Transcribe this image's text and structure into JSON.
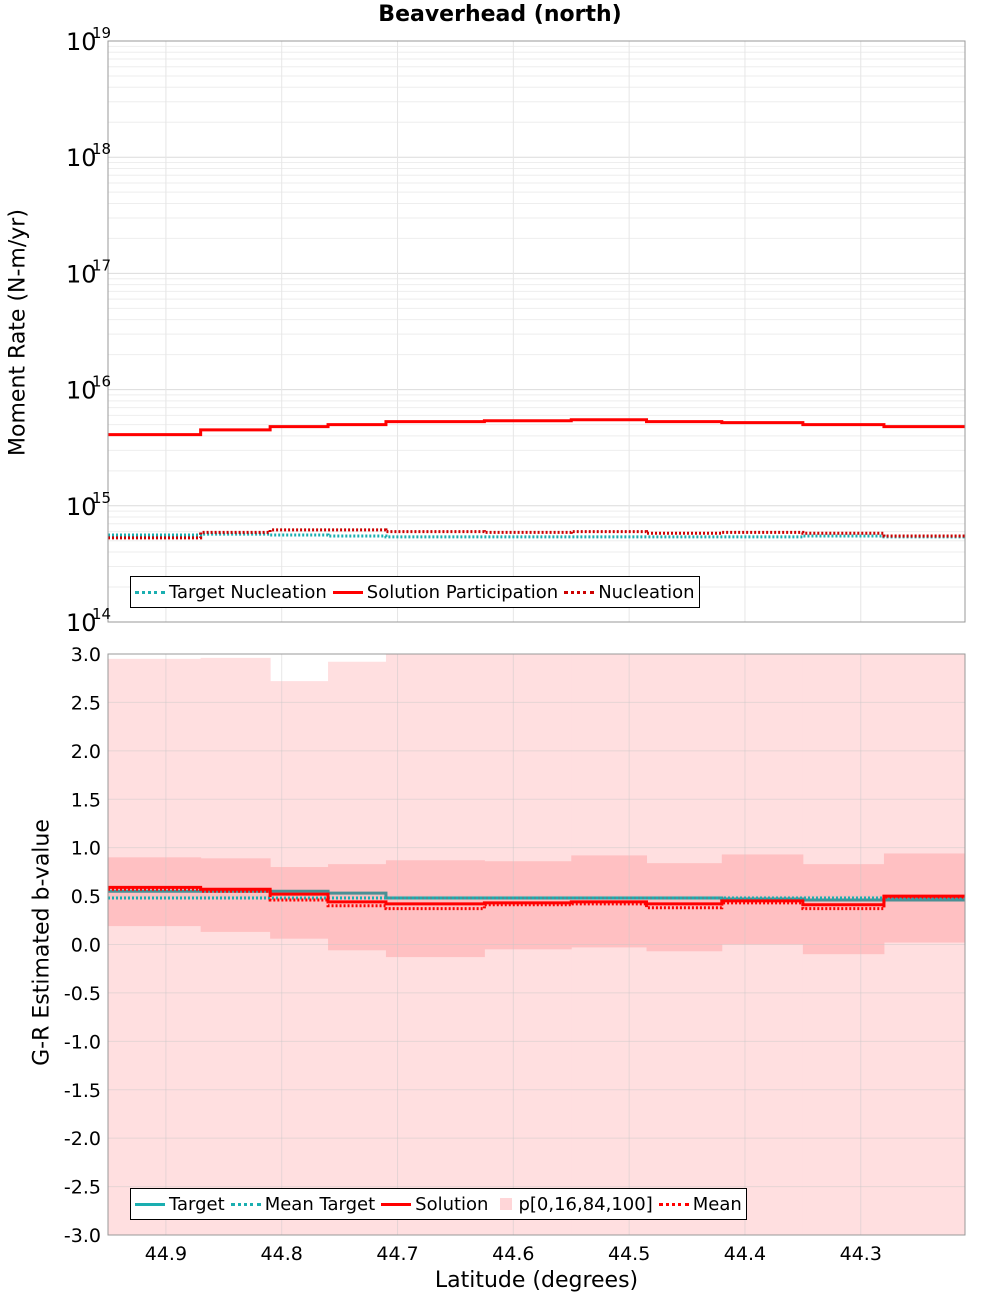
{
  "chart_title": "Beaverhead (north)",
  "colors": {
    "target": "#1aaeb0",
    "solution": "#ff0000",
    "band_outer": "#ffdfe0",
    "band_inner": "#ffc0c2",
    "grid": "#e6e6e6"
  },
  "chart_data": [
    {
      "type": "line",
      "title": "Beaverhead (north)",
      "xlabel": "",
      "ylabel": "Moment Rate (N-m/yr)",
      "yscale": "log",
      "ylim": [
        100000000000000.0,
        1e+19
      ],
      "xlim": [
        44.95,
        44.21
      ],
      "y_tick_labels": [
        {
          "base": "10",
          "exp": "14"
        },
        {
          "base": "10",
          "exp": "15"
        },
        {
          "base": "10",
          "exp": "16"
        },
        {
          "base": "10",
          "exp": "17"
        },
        {
          "base": "10",
          "exp": "18"
        },
        {
          "base": "10",
          "exp": "19"
        }
      ],
      "x_edges": [
        44.95,
        44.87,
        44.81,
        44.76,
        44.71,
        44.625,
        44.55,
        44.485,
        44.42,
        44.35,
        44.28,
        44.21
      ],
      "legend": [
        "Target Nucleation",
        "Solution Participation",
        "Nucleation"
      ],
      "series": [
        {
          "name": "Target Nucleation",
          "style": "dotted",
          "color": "#1aaeb0",
          "values": [
            560000000000000.0,
            570000000000000.0,
            560000000000000.0,
            550000000000000.0,
            540000000000000.0,
            540000000000000.0,
            540000000000000.0,
            540000000000000.0,
            540000000000000.0,
            550000000000000.0,
            540000000000000.0
          ]
        },
        {
          "name": "Solution Participation",
          "style": "solid",
          "color": "#ff0000",
          "values": [
            4100000000000000.0,
            4500000000000000.0,
            4800000000000000.0,
            5000000000000000.0,
            5300000000000000.0,
            5400000000000000.0,
            5500000000000000.0,
            5300000000000000.0,
            5200000000000000.0,
            5000000000000000.0,
            4800000000000000.0
          ]
        },
        {
          "name": "Nucleation",
          "style": "dotted",
          "color": "#cc0000",
          "values": [
            530000000000000.0,
            590000000000000.0,
            620000000000000.0,
            620000000000000.0,
            600000000000000.0,
            590000000000000.0,
            600000000000000.0,
            580000000000000.0,
            590000000000000.0,
            580000000000000.0,
            550000000000000.0
          ]
        }
      ]
    },
    {
      "type": "line",
      "title": "",
      "xlabel": "Latitude (degrees)",
      "ylabel": "G-R Estimated b-value",
      "ylim": [
        -3.0,
        3.0
      ],
      "xlim": [
        44.95,
        44.21
      ],
      "y_ticks": [
        -3.0,
        -2.5,
        -2.0,
        -1.5,
        -1.0,
        -0.5,
        0.0,
        0.5,
        1.0,
        1.5,
        2.0,
        2.5,
        3.0
      ],
      "y_tick_labels": [
        "-3.0",
        "-2.5",
        "-2.0",
        "-1.5",
        "-1.0",
        "-0.5",
        "0.0",
        "0.5",
        "1.0",
        "1.5",
        "2.0",
        "2.5",
        "3.0"
      ],
      "x_ticks": [
        44.9,
        44.8,
        44.7,
        44.6,
        44.5,
        44.4,
        44.3
      ],
      "x_tick_labels": [
        "44.9",
        "44.8",
        "44.7",
        "44.6",
        "44.5",
        "44.4",
        "44.3"
      ],
      "x_edges": [
        44.95,
        44.87,
        44.81,
        44.76,
        44.71,
        44.625,
        44.55,
        44.485,
        44.42,
        44.35,
        44.28,
        44.21
      ],
      "legend": [
        "Target",
        "Mean Target",
        "Solution",
        "p[0,16,84,100]",
        "Mean"
      ],
      "band_outer_top": [
        2.95,
        2.96,
        2.72,
        2.92,
        3.0,
        3.0,
        3.0,
        3.0,
        3.0,
        3.0,
        3.0
      ],
      "band_outer_bottom": [
        -3.0,
        -3.0,
        -3.0,
        -3.0,
        -3.0,
        -3.0,
        -3.0,
        -3.0,
        -3.0,
        -3.0,
        -3.0
      ],
      "band_p84": [
        0.9,
        0.89,
        0.8,
        0.83,
        0.87,
        0.86,
        0.92,
        0.84,
        0.93,
        0.83,
        0.94
      ],
      "band_p16": [
        0.19,
        0.13,
        0.06,
        -0.06,
        -0.13,
        -0.05,
        -0.03,
        -0.07,
        0.0,
        -0.1,
        0.02
      ],
      "series": [
        {
          "name": "Target",
          "style": "solid",
          "color": "#4a8f94",
          "values": [
            0.55,
            0.55,
            0.55,
            0.53,
            0.48,
            0.48,
            0.48,
            0.48,
            0.47,
            0.46,
            0.46
          ]
        },
        {
          "name": "Mean Target",
          "style": "dotted",
          "color": "#1aaeb0",
          "values": [
            0.48,
            0.48,
            0.48,
            0.48,
            0.48,
            0.48,
            0.48,
            0.48,
            0.48,
            0.48,
            0.48
          ]
        },
        {
          "name": "Solution",
          "style": "solid",
          "color": "#ff0000",
          "values": [
            0.59,
            0.57,
            0.52,
            0.44,
            0.42,
            0.43,
            0.44,
            0.42,
            0.45,
            0.41,
            0.5
          ]
        },
        {
          "name": "Mean",
          "style": "dotted",
          "color": "#ff0000",
          "values": [
            0.57,
            0.55,
            0.46,
            0.4,
            0.37,
            0.41,
            0.42,
            0.38,
            0.43,
            0.37,
            0.49
          ]
        }
      ]
    }
  ]
}
